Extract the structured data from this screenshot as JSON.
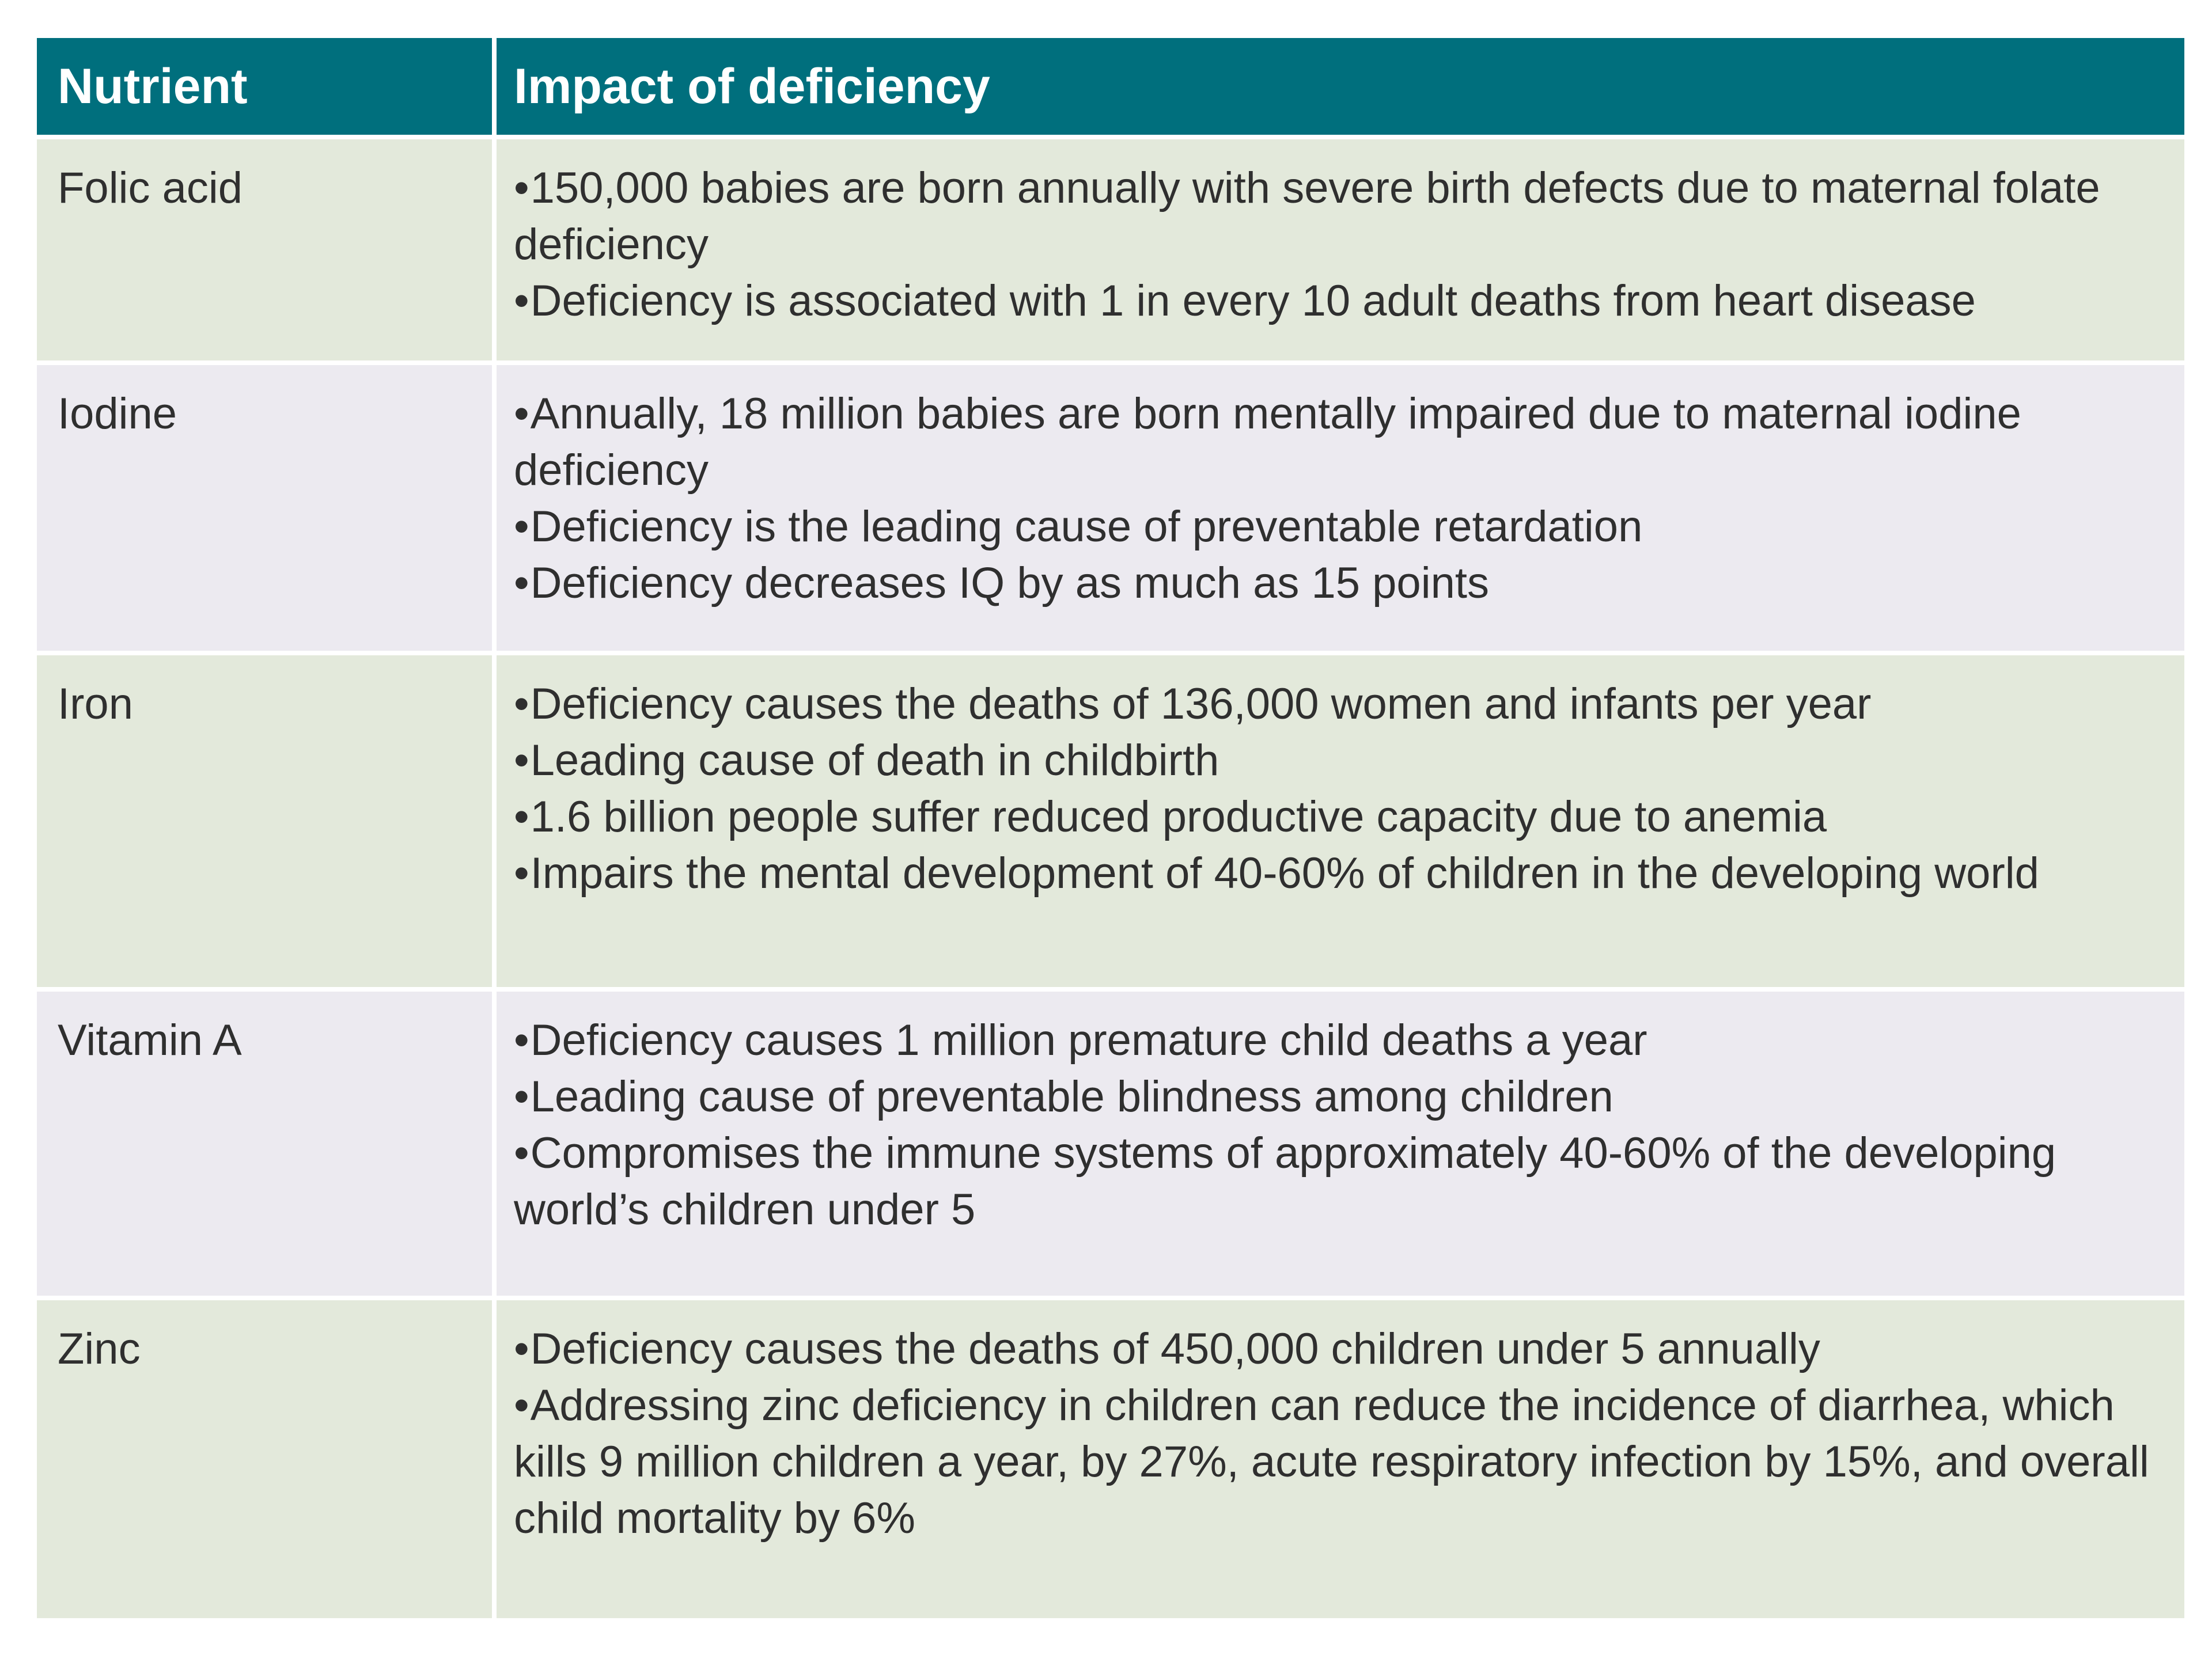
{
  "header": {
    "col1": "Nutrient",
    "col2": "Impact of deficiency"
  },
  "rows": [
    {
      "nutrient": "Folic acid",
      "impacts": [
        "150,000 babies are born annually with severe birth defects due to maternal folate deficiency",
        "Deficiency is associated with 1 in every 10 adult deaths from heart disease"
      ]
    },
    {
      "nutrient": "Iodine",
      "impacts": [
        "Annually, 18 million babies are born mentally impaired due to maternal iodine deficiency",
        "Deficiency is the leading cause of preventable retardation",
        "Deficiency decreases IQ by as much as 15 points"
      ]
    },
    {
      "nutrient": "Iron",
      "impacts": [
        "Deficiency causes the deaths of 136,000 women and infants per year",
        "Leading cause of death in childbirth",
        "1.6 billion people suffer reduced productive capacity due to anemia",
        "Impairs the mental development of 40-60% of children in the developing world"
      ]
    },
    {
      "nutrient": "Vitamin A",
      "impacts": [
        "Deficiency causes 1 million premature child deaths a year",
        "Leading cause of preventable blindness among children",
        "Compromises the immune systems of approximately 40-60% of the developing world’s children under 5"
      ]
    },
    {
      "nutrient": "Zinc",
      "impacts": [
        "Deficiency causes the deaths of 450,000 children under 5 annually",
        "Addressing zinc deficiency in children can reduce the incidence of diarrhea, which kills 9 million children a year, by 27%, acute respiratory infection by 15%, and overall child mortality by 6%"
      ]
    }
  ],
  "colors": {
    "header_bg": "#006f7d",
    "row_green": "#e3e9db",
    "row_lavender": "#eceaf0"
  }
}
